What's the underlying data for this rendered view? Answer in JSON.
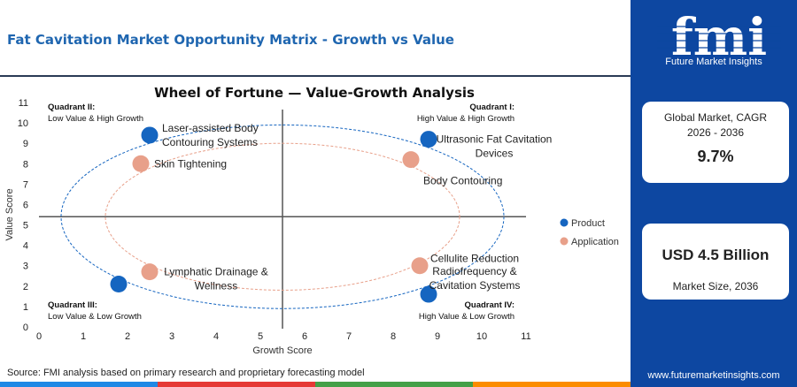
{
  "title": "Fat Cavitation Market Opportunity Matrix - Growth vs Value",
  "brand": {
    "logo_text": "fmi",
    "tagline": "Future Market Insights",
    "url": "www.futuremarketinsights.com",
    "color": "#0d47a1"
  },
  "metrics": {
    "cagr_label": "Global Market, CAGR 2026 - 2036",
    "cagr_value": "9.7%",
    "size_value": "USD 4.5 Billion",
    "size_label": "Market Size, 2036"
  },
  "source": "Source: FMI analysis based on primary research and proprietary forecasting model",
  "bottom_bar_colors": [
    "#1e88e5",
    "#e53935",
    "#43a047",
    "#fb8c00"
  ],
  "chart_data": {
    "type": "scatter",
    "title": "Wheel of Fortune — Value-Growth Analysis",
    "xlabel": "Growth Score",
    "ylabel": "Value Score",
    "xlim": [
      0,
      11
    ],
    "ylim": [
      0,
      11
    ],
    "xticks": [
      0,
      1,
      2,
      3,
      4,
      5,
      6,
      7,
      8,
      9,
      10,
      11
    ],
    "yticks": [
      0,
      1,
      2,
      3,
      4,
      5,
      6,
      7,
      8,
      9,
      10,
      11
    ],
    "divider_x": 5.5,
    "divider_y": 5.4,
    "grid": false,
    "quadrants": [
      {
        "title": "Quadrant II:",
        "subtitle": "Low Value & High Growth",
        "position": "top-left"
      },
      {
        "title": "Quadrant I:",
        "subtitle": "High Value & High Growth",
        "position": "top-right"
      },
      {
        "title": "Quadrant III:",
        "subtitle": "Low Value & Low Growth",
        "position": "bottom-left"
      },
      {
        "title": "Quadrant IV:",
        "subtitle": "High Value & Low Growth",
        "position": "bottom-right"
      }
    ],
    "series": [
      {
        "name": "Product",
        "color": "#1565c0",
        "points": [
          {
            "label": "Laser-assisted Body Contouring Systems",
            "x": 2.5,
            "y": 9.4
          },
          {
            "label": "Ultrasonic Fat Cavitation Devices",
            "x": 8.8,
            "y": 9.2
          },
          {
            "label": "",
            "x": 1.8,
            "y": 2.1
          },
          {
            "label": "Radiofrequency & Cavitation Systems",
            "x": 8.8,
            "y": 1.6
          }
        ]
      },
      {
        "name": "Application",
        "color": "#e8a08a",
        "points": [
          {
            "label": "Skin Tightening",
            "x": 2.3,
            "y": 8.0
          },
          {
            "label": "Body Contouring",
            "x": 8.4,
            "y": 8.2
          },
          {
            "label": "Lymphatic Drainage & Wellness",
            "x": 2.5,
            "y": 2.7
          },
          {
            "label": "Cellulite Reduction",
            "x": 8.6,
            "y": 3.0
          }
        ]
      }
    ],
    "ellipses": [
      {
        "series": "Product",
        "cx": 5.5,
        "cy": 5.4,
        "rx": 5.0,
        "ry": 4.5
      },
      {
        "series": "Application",
        "cx": 5.5,
        "cy": 5.4,
        "rx": 4.0,
        "ry": 3.6
      }
    ],
    "legend": {
      "position": "right"
    }
  }
}
